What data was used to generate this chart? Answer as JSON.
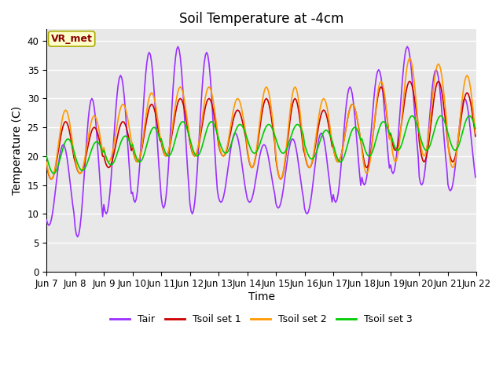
{
  "title": "Soil Temperature at -4cm",
  "xlabel": "Time",
  "ylabel": "Temperature (C)",
  "ylim": [
    0,
    42
  ],
  "yticks": [
    0,
    5,
    10,
    15,
    20,
    25,
    30,
    35,
    40
  ],
  "x_labels": [
    "Jun 7",
    "Jun 8",
    "Jun 9",
    "Jun 10",
    "Jun 11",
    "Jun 12",
    "Jun 13",
    "Jun 14",
    "Jun 15",
    "Jun 16",
    "Jun 17",
    "Jun 18",
    "Jun 19",
    "Jun 20",
    "Jun 21",
    "Jun 22"
  ],
  "line_colors": {
    "Tair": "#9b30ff",
    "Tsoil set 1": "#cc0000",
    "Tsoil set 2": "#ff9900",
    "Tsoil set 3": "#00cc00"
  },
  "line_widths": {
    "Tair": 1.2,
    "Tsoil set 1": 1.2,
    "Tsoil set 2": 1.2,
    "Tsoil set 3": 1.2
  },
  "annotation_text": "VR_met",
  "annotation_color": "#8b0000",
  "annotation_bg": "#ffffcc",
  "annotation_edge": "#aaaa00",
  "background_color": "#e8e8e8",
  "grid_color": "#ffffff",
  "title_fontsize": 12,
  "label_fontsize": 10,
  "tick_fontsize": 8.5,
  "legend_fontsize": 9
}
